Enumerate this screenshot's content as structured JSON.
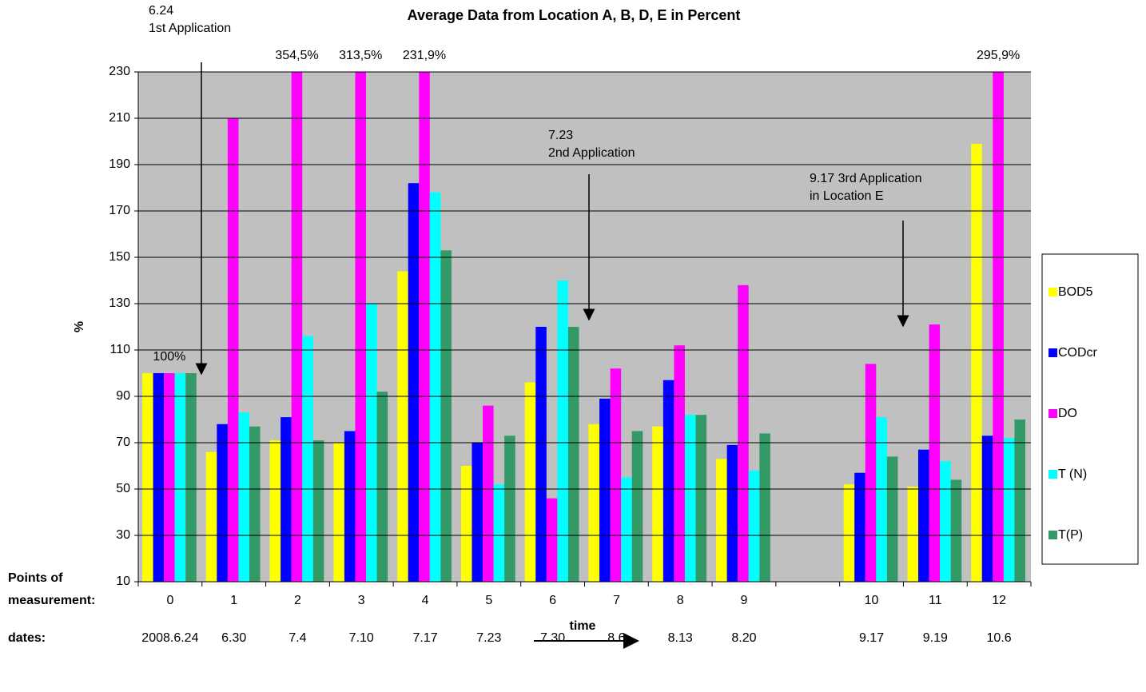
{
  "chart_data": {
    "type": "bar",
    "title": "Average Data from Location A, B, D, E in Percent",
    "y_label": "%",
    "x_label": "time",
    "row_labels": {
      "points": [
        "Points of",
        "measurement:"
      ],
      "dates": "dates:"
    },
    "categories": [
      "0",
      "1",
      "2",
      "3",
      "4",
      "5",
      "6",
      "7",
      "8",
      "9",
      null,
      "10",
      "11",
      "12"
    ],
    "dates": [
      "2008.6.24",
      "6.30",
      "7.4",
      "7.10",
      "7.17",
      "7.23",
      "7.30",
      "8.6",
      "8.13",
      "8.20",
      null,
      "9.17",
      "9.19",
      "10.6"
    ],
    "ylim": [
      10,
      230
    ],
    "yticks": [
      10,
      30,
      50,
      70,
      90,
      110,
      130,
      150,
      170,
      190,
      210,
      230
    ],
    "grid": true,
    "legend": "right",
    "series": [
      {
        "name": "BOD5",
        "color": "#ffff00",
        "values": [
          100,
          66,
          71,
          70,
          144,
          60,
          96,
          78,
          77,
          63,
          null,
          52,
          51,
          199
        ]
      },
      {
        "name": "CODcr",
        "color": "#0000ff",
        "values": [
          100,
          78,
          81,
          75,
          182,
          70,
          120,
          89,
          97,
          69,
          null,
          57,
          67,
          73
        ]
      },
      {
        "name": "DO",
        "color": "#ff00ff",
        "values": [
          100,
          210,
          354.5,
          313.5,
          231.9,
          86,
          46,
          102,
          112,
          138,
          null,
          104,
          121,
          295.9
        ],
        "value_labels": [
          "100%",
          null,
          "354,5%",
          "313,5%",
          "231,9%",
          null,
          null,
          null,
          null,
          null,
          null,
          null,
          null,
          "295,9%"
        ]
      },
      {
        "name": "T (N)",
        "color": "#00ffff",
        "values": [
          100,
          83,
          116,
          130,
          178,
          52,
          140,
          55,
          82,
          58,
          null,
          81,
          62,
          72
        ]
      },
      {
        "name": "T(P)",
        "color": "#339966",
        "values": [
          100,
          77,
          71,
          92,
          153,
          73,
          120,
          75,
          82,
          74,
          null,
          64,
          54,
          80
        ]
      }
    ],
    "annotations": [
      {
        "lines": [
          "6.24",
          "1st Application"
        ]
      },
      {
        "lines": [
          "7.23",
          "2nd Application"
        ]
      },
      {
        "lines": [
          "9.17 3rd Application",
          "in Location E"
        ]
      }
    ]
  }
}
